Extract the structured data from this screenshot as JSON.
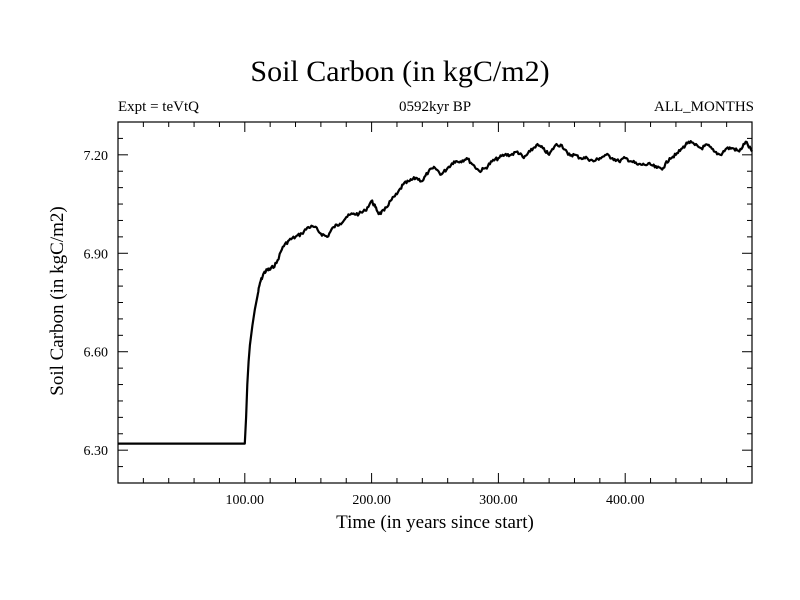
{
  "header": {
    "title": "Soil Carbon (in kgC/m2)",
    "experiment": "Expt = teVtQ",
    "period": "0592kyr BP",
    "months": "ALL_MONTHS"
  },
  "chart_data": {
    "type": "line",
    "title": "Soil Carbon (in kgC/m2)",
    "xlabel": "Time (in years since start)",
    "ylabel": "Soil Carbon (in kgC/m2)",
    "xlim": [
      0,
      500
    ],
    "ylim": [
      6.2,
      7.3
    ],
    "xticks": [
      100,
      200,
      300,
      400
    ],
    "xtick_labels": [
      "100.00",
      "200.00",
      "300.00",
      "400.00"
    ],
    "yticks": [
      6.3,
      6.6,
      6.9,
      7.2
    ],
    "ytick_labels": [
      "6.30",
      "6.60",
      "6.90",
      "7.20"
    ],
    "line_color": "#000000",
    "series": [
      {
        "x": [
          0,
          100,
          101,
          102,
          103,
          104,
          106,
          108,
          110,
          112,
          115,
          118,
          120,
          125,
          130,
          135,
          140,
          145,
          150,
          155,
          160,
          165,
          170,
          175,
          180,
          185,
          190,
          195,
          200,
          203,
          206,
          210,
          215,
          220,
          225,
          230,
          235,
          240,
          245,
          250,
          255,
          260,
          265,
          270,
          275,
          280,
          285,
          290,
          295,
          300,
          305,
          310,
          315,
          320,
          325,
          330,
          335,
          340,
          345,
          350,
          355,
          360,
          365,
          370,
          375,
          380,
          385,
          390,
          395,
          400,
          405,
          410,
          415,
          420,
          425,
          430,
          435,
          440,
          445,
          450,
          455,
          460,
          465,
          470,
          475,
          480,
          485,
          490,
          495,
          500
        ],
        "y": [
          6.32,
          6.32,
          6.4,
          6.5,
          6.57,
          6.62,
          6.68,
          6.73,
          6.77,
          6.81,
          6.84,
          6.85,
          6.85,
          6.87,
          6.92,
          6.94,
          6.95,
          6.96,
          6.98,
          6.98,
          6.96,
          6.95,
          6.98,
          6.99,
          7.01,
          7.02,
          7.02,
          7.03,
          7.06,
          7.04,
          7.02,
          7.03,
          7.06,
          7.08,
          7.11,
          7.12,
          7.13,
          7.12,
          7.15,
          7.16,
          7.14,
          7.16,
          7.18,
          7.18,
          7.19,
          7.17,
          7.15,
          7.16,
          7.18,
          7.19,
          7.2,
          7.2,
          7.21,
          7.19,
          7.21,
          7.23,
          7.22,
          7.2,
          7.23,
          7.23,
          7.2,
          7.2,
          7.19,
          7.19,
          7.18,
          7.19,
          7.2,
          7.19,
          7.18,
          7.19,
          7.18,
          7.17,
          7.17,
          7.17,
          7.16,
          7.16,
          7.19,
          7.2,
          7.22,
          7.24,
          7.23,
          7.22,
          7.23,
          7.21,
          7.2,
          7.22,
          7.22,
          7.21,
          7.24,
          7.21
        ]
      }
    ]
  }
}
